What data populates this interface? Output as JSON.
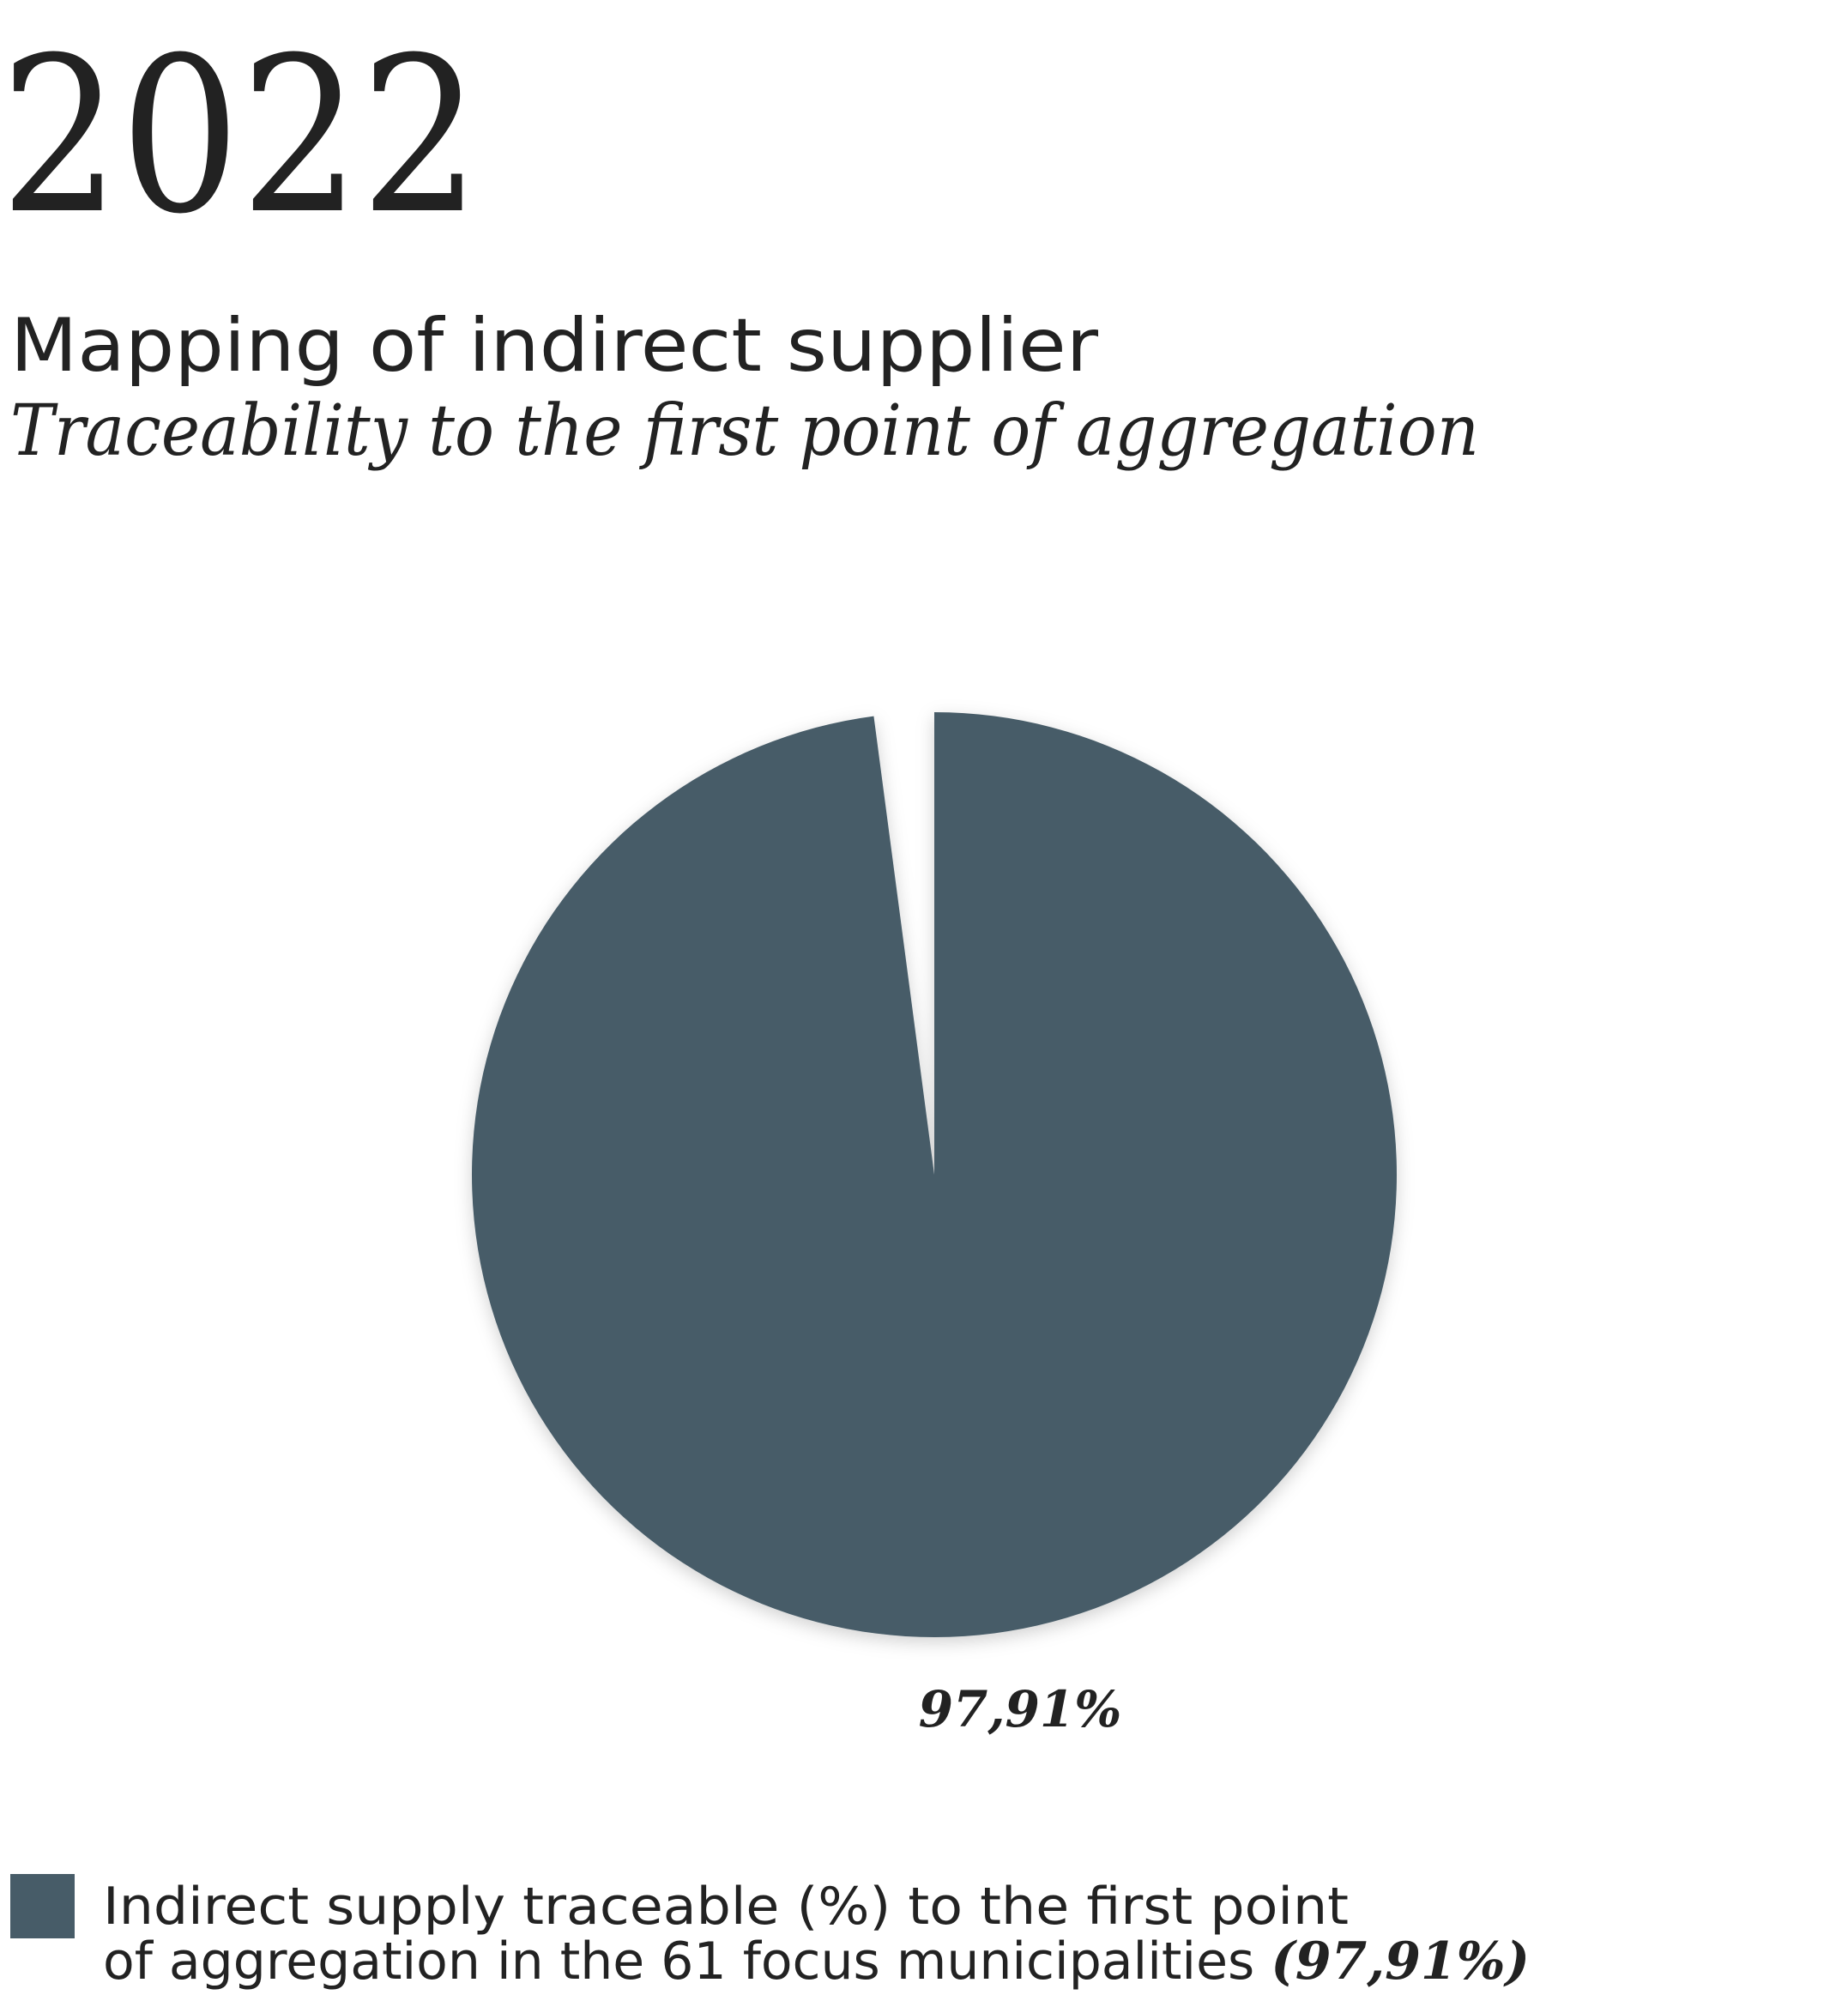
{
  "chart_data": {
    "type": "pie",
    "title": "2022",
    "subtitle": "Mapping of indirect supplier",
    "caption": "Traceability to the first point of aggregation",
    "values": [
      97.91
    ],
    "value_labels": [
      "97,91%"
    ],
    "color": "#475c68",
    "legend": {
      "lines": [
        "Indirect supply traceable (%) to the first point",
        "of aggregation in the 61 focus municipalities"
      ],
      "value_label": "(97,91%)"
    }
  }
}
